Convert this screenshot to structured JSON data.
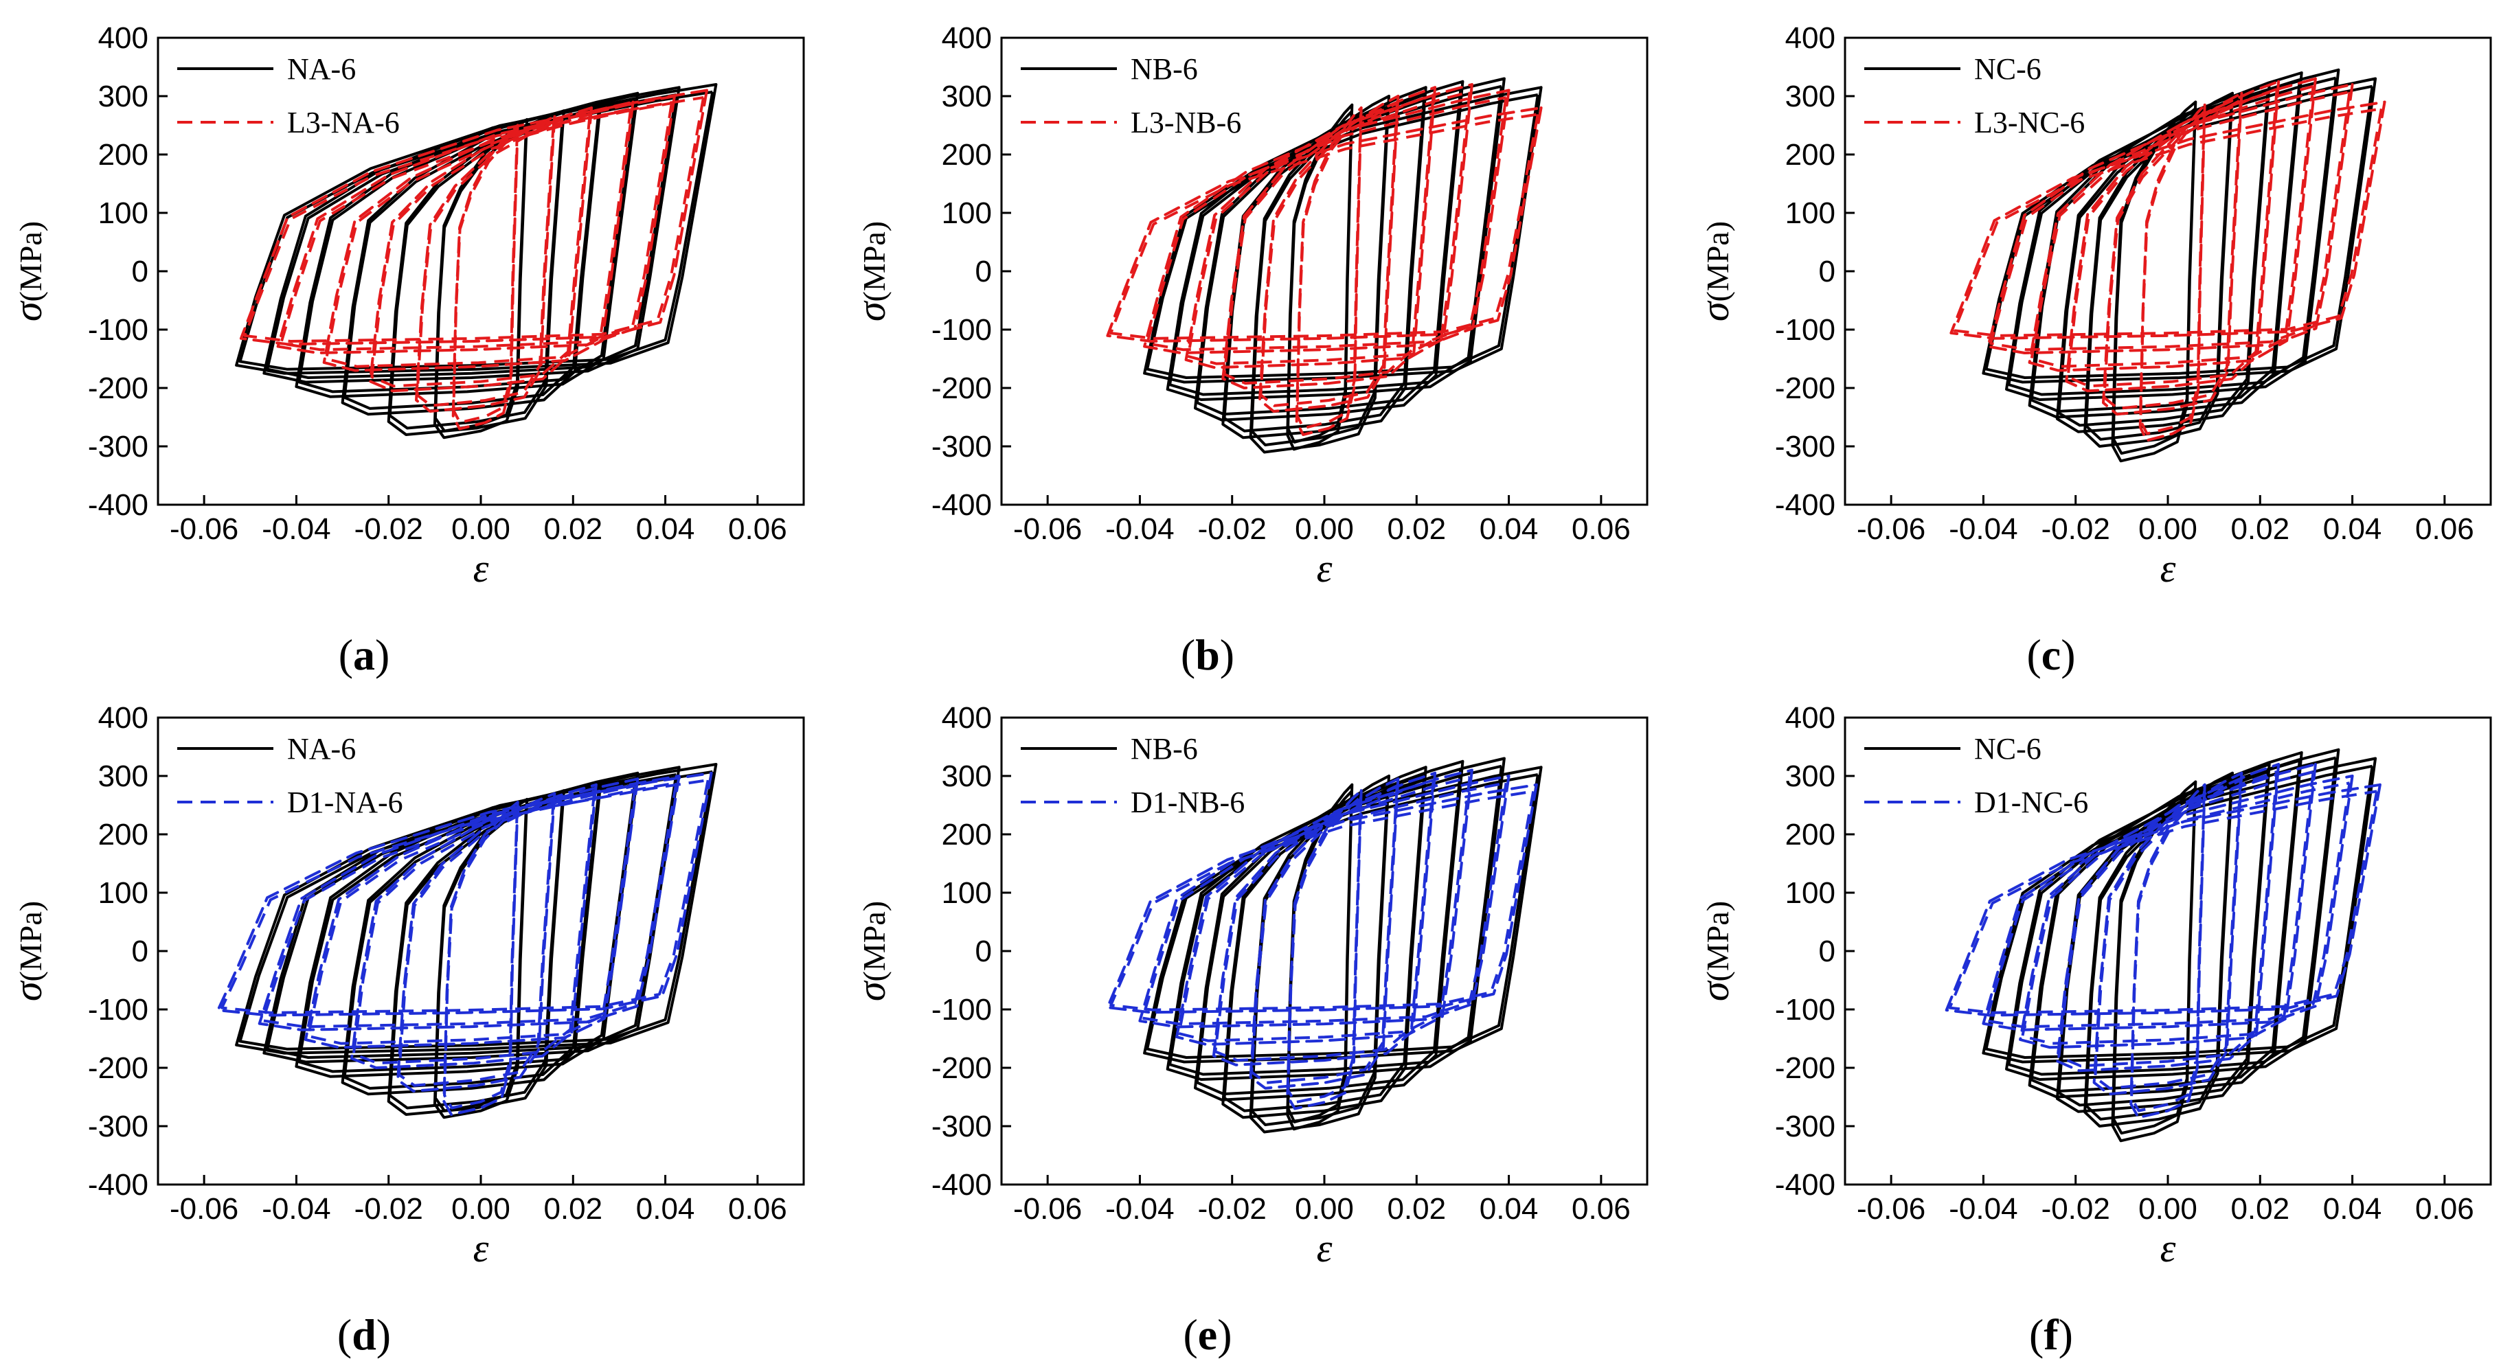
{
  "figure_title": "",
  "chart_data": [
    {
      "type": "line",
      "panel": "a",
      "panel_label": "(a)",
      "xlabel": "ε",
      "ylabel_symbol": "σ",
      "ylabel_unit": "(MPa)",
      "xlim": [
        -0.07,
        0.07
      ],
      "ylim": [
        -400,
        400
      ],
      "xticks": [
        "-0.06",
        "-0.04",
        "-0.02",
        "0.00",
        "0.02",
        "0.04",
        "0.06"
      ],
      "yticks": [
        "400",
        "300",
        "200",
        "100",
        "0",
        "-100",
        "-200",
        "-300",
        "-400"
      ],
      "legend": "top-left",
      "series": [
        {
          "name": "NA-6",
          "style": "solid",
          "color": "#000000",
          "loops": [
            {
              "strain_max": 0.01,
              "strain_min": -0.01,
              "stress_max": 260,
              "stress_min": -285
            },
            {
              "strain_max": 0.018,
              "strain_min": -0.02,
              "stress_max": 275,
              "stress_min": -280
            },
            {
              "strain_max": 0.026,
              "strain_min": -0.03,
              "stress_max": 290,
              "stress_min": -245
            },
            {
              "strain_max": 0.034,
              "strain_min": -0.04,
              "stress_max": 305,
              "stress_min": -215
            },
            {
              "strain_max": 0.043,
              "strain_min": -0.047,
              "stress_max": 315,
              "stress_min": -190
            },
            {
              "strain_max": 0.051,
              "strain_min": -0.053,
              "stress_max": 320,
              "stress_min": -175
            }
          ]
        },
        {
          "name": "L3-NA-6",
          "style": "dashed",
          "color": "#e41a1c",
          "loops": [
            {
              "strain_max": 0.008,
              "strain_min": -0.006,
              "stress_max": 250,
              "stress_min": -270
            },
            {
              "strain_max": 0.016,
              "strain_min": -0.014,
              "stress_max": 265,
              "stress_min": -240
            },
            {
              "strain_max": 0.024,
              "strain_min": -0.024,
              "stress_max": 280,
              "stress_min": -205
            },
            {
              "strain_max": 0.033,
              "strain_min": -0.034,
              "stress_max": 290,
              "stress_min": -170
            },
            {
              "strain_max": 0.042,
              "strain_min": -0.044,
              "stress_max": 300,
              "stress_min": -140
            },
            {
              "strain_max": 0.049,
              "strain_min": -0.052,
              "stress_max": 310,
              "stress_min": -125
            }
          ]
        }
      ]
    },
    {
      "type": "line",
      "panel": "b",
      "panel_label": "(b)",
      "xlabel": "ε",
      "ylabel_symbol": "σ",
      "ylabel_unit": "(MPa)",
      "xlim": [
        -0.07,
        0.07
      ],
      "ylim": [
        -400,
        400
      ],
      "xticks": [
        "-0.06",
        "-0.04",
        "-0.02",
        "0.00",
        "0.02",
        "0.04",
        "0.06"
      ],
      "yticks": [
        "400",
        "300",
        "200",
        "100",
        "0",
        "-100",
        "-200",
        "-300",
        "-400"
      ],
      "legend": "top-left",
      "series": [
        {
          "name": "NB-6",
          "style": "solid",
          "color": "#000000",
          "loops": [
            {
              "strain_max": 0.006,
              "strain_min": -0.008,
              "stress_max": 285,
              "stress_min": -305
            },
            {
              "strain_max": 0.014,
              "strain_min": -0.016,
              "stress_max": 300,
              "stress_min": -310
            },
            {
              "strain_max": 0.022,
              "strain_min": -0.022,
              "stress_max": 315,
              "stress_min": -285
            },
            {
              "strain_max": 0.03,
              "strain_min": -0.028,
              "stress_max": 325,
              "stress_min": -255
            },
            {
              "strain_max": 0.039,
              "strain_min": -0.034,
              "stress_max": 330,
              "stress_min": -220
            },
            {
              "strain_max": 0.047,
              "strain_min": -0.039,
              "stress_max": 315,
              "stress_min": -190
            }
          ]
        },
        {
          "name": "L3-NB-6",
          "style": "dashed",
          "color": "#e41a1c",
          "loops": [
            {
              "strain_max": 0.008,
              "strain_min": -0.006,
              "stress_max": 280,
              "stress_min": -280
            },
            {
              "strain_max": 0.016,
              "strain_min": -0.014,
              "stress_max": 300,
              "stress_min": -240
            },
            {
              "strain_max": 0.024,
              "strain_min": -0.022,
              "stress_max": 315,
              "stress_min": -200
            },
            {
              "strain_max": 0.032,
              "strain_min": -0.03,
              "stress_max": 320,
              "stress_min": -165
            },
            {
              "strain_max": 0.04,
              "strain_min": -0.039,
              "stress_max": 310,
              "stress_min": -140
            },
            {
              "strain_max": 0.047,
              "strain_min": -0.047,
              "stress_max": 280,
              "stress_min": -120
            }
          ]
        }
      ]
    },
    {
      "type": "line",
      "panel": "c",
      "panel_label": "(c)",
      "xlabel": "ε",
      "ylabel_symbol": "σ",
      "ylabel_unit": "(MPa)",
      "xlim": [
        -0.07,
        0.07
      ],
      "ylim": [
        -400,
        400
      ],
      "xticks": [
        "-0.06",
        "-0.04",
        "-0.02",
        "0.00",
        "0.02",
        "0.04",
        "0.06"
      ],
      "yticks": [
        "400",
        "300",
        "200",
        "100",
        "0",
        "-100",
        "-200",
        "-300",
        "-400"
      ],
      "legend": "top-left",
      "series": [
        {
          "name": "NC-6",
          "style": "solid",
          "color": "#000000",
          "loops": [
            {
              "strain_max": 0.006,
              "strain_min": -0.012,
              "stress_max": 290,
              "stress_min": -325
            },
            {
              "strain_max": 0.014,
              "strain_min": -0.018,
              "stress_max": 305,
              "stress_min": -300
            },
            {
              "strain_max": 0.022,
              "strain_min": -0.024,
              "stress_max": 320,
              "stress_min": -275
            },
            {
              "strain_max": 0.029,
              "strain_min": -0.03,
              "stress_max": 340,
              "stress_min": -250
            },
            {
              "strain_max": 0.037,
              "strain_min": -0.035,
              "stress_max": 345,
              "stress_min": -220
            },
            {
              "strain_max": 0.045,
              "strain_min": -0.04,
              "stress_max": 330,
              "stress_min": -190
            }
          ]
        },
        {
          "name": "L3-NC-6",
          "style": "dashed",
          "color": "#e41a1c",
          "loops": [
            {
              "strain_max": 0.008,
              "strain_min": -0.006,
              "stress_max": 285,
              "stress_min": -290
            },
            {
              "strain_max": 0.016,
              "strain_min": -0.014,
              "stress_max": 305,
              "stress_min": -245
            },
            {
              "strain_max": 0.024,
              "strain_min": -0.022,
              "stress_max": 325,
              "stress_min": -205
            },
            {
              "strain_max": 0.032,
              "strain_min": -0.03,
              "stress_max": 330,
              "stress_min": -170
            },
            {
              "strain_max": 0.04,
              "strain_min": -0.039,
              "stress_max": 320,
              "stress_min": -140
            },
            {
              "strain_max": 0.047,
              "strain_min": -0.047,
              "stress_max": 290,
              "stress_min": -115
            }
          ]
        }
      ]
    },
    {
      "type": "line",
      "panel": "d",
      "panel_label": "(d)",
      "xlabel": "ε",
      "ylabel_symbol": "σ",
      "ylabel_unit": "(MPa)",
      "xlim": [
        -0.07,
        0.07
      ],
      "ylim": [
        -400,
        400
      ],
      "xticks": [
        "-0.06",
        "-0.04",
        "-0.02",
        "0.00",
        "0.02",
        "0.04",
        "0.06"
      ],
      "yticks": [
        "400",
        "300",
        "200",
        "100",
        "0",
        "-100",
        "-200",
        "-300",
        "-400"
      ],
      "legend": "top-left",
      "series": [
        {
          "name": "NA-6",
          "style": "solid",
          "color": "#000000",
          "loops": [
            {
              "strain_max": 0.01,
              "strain_min": -0.01,
              "stress_max": 260,
              "stress_min": -285
            },
            {
              "strain_max": 0.018,
              "strain_min": -0.02,
              "stress_max": 275,
              "stress_min": -280
            },
            {
              "strain_max": 0.026,
              "strain_min": -0.03,
              "stress_max": 290,
              "stress_min": -245
            },
            {
              "strain_max": 0.034,
              "strain_min": -0.04,
              "stress_max": 305,
              "stress_min": -215
            },
            {
              "strain_max": 0.043,
              "strain_min": -0.047,
              "stress_max": 315,
              "stress_min": -190
            },
            {
              "strain_max": 0.051,
              "strain_min": -0.053,
              "stress_max": 320,
              "stress_min": -175
            }
          ]
        },
        {
          "name": "D1-NA-6",
          "style": "dashed",
          "color": "#1f2fd6",
          "loops": [
            {
              "strain_max": 0.008,
              "strain_min": -0.008,
              "stress_max": 255,
              "stress_min": -280
            },
            {
              "strain_max": 0.016,
              "strain_min": -0.018,
              "stress_max": 270,
              "stress_min": -240
            },
            {
              "strain_max": 0.025,
              "strain_min": -0.028,
              "stress_max": 285,
              "stress_min": -200
            },
            {
              "strain_max": 0.034,
              "strain_min": -0.038,
              "stress_max": 295,
              "stress_min": -165
            },
            {
              "strain_max": 0.043,
              "strain_min": -0.048,
              "stress_max": 300,
              "stress_min": -135
            },
            {
              "strain_max": 0.05,
              "strain_min": -0.057,
              "stress_max": 305,
              "stress_min": -110
            }
          ]
        }
      ]
    },
    {
      "type": "line",
      "panel": "e",
      "panel_label": "(e)",
      "xlabel": "ε",
      "ylabel_symbol": "σ",
      "ylabel_unit": "(MPa)",
      "xlim": [
        -0.07,
        0.07
      ],
      "ylim": [
        -400,
        400
      ],
      "xticks": [
        "-0.06",
        "-0.04",
        "-0.02",
        "0.00",
        "0.02",
        "0.04",
        "0.06"
      ],
      "yticks": [
        "400",
        "300",
        "200",
        "100",
        "0",
        "-100",
        "-200",
        "-300",
        "-400"
      ],
      "legend": "top-left",
      "series": [
        {
          "name": "NB-6",
          "style": "solid",
          "color": "#000000",
          "loops": [
            {
              "strain_max": 0.006,
              "strain_min": -0.008,
              "stress_max": 285,
              "stress_min": -305
            },
            {
              "strain_max": 0.014,
              "strain_min": -0.016,
              "stress_max": 300,
              "stress_min": -310
            },
            {
              "strain_max": 0.022,
              "strain_min": -0.022,
              "stress_max": 315,
              "stress_min": -285
            },
            {
              "strain_max": 0.03,
              "strain_min": -0.028,
              "stress_max": 325,
              "stress_min": -255
            },
            {
              "strain_max": 0.039,
              "strain_min": -0.034,
              "stress_max": 330,
              "stress_min": -220
            },
            {
              "strain_max": 0.047,
              "strain_min": -0.039,
              "stress_max": 315,
              "stress_min": -190
            }
          ]
        },
        {
          "name": "D1-NB-6",
          "style": "dashed",
          "color": "#1f2fd6",
          "loops": [
            {
              "strain_max": 0.008,
              "strain_min": -0.008,
              "stress_max": 275,
              "stress_min": -270
            },
            {
              "strain_max": 0.016,
              "strain_min": -0.016,
              "stress_max": 295,
              "stress_min": -235
            },
            {
              "strain_max": 0.024,
              "strain_min": -0.024,
              "stress_max": 305,
              "stress_min": -195
            },
            {
              "strain_max": 0.032,
              "strain_min": -0.032,
              "stress_max": 310,
              "stress_min": -160
            },
            {
              "strain_max": 0.04,
              "strain_min": -0.04,
              "stress_max": 300,
              "stress_min": -130
            },
            {
              "strain_max": 0.046,
              "strain_min": -0.047,
              "stress_max": 285,
              "stress_min": -105
            }
          ]
        }
      ]
    },
    {
      "type": "line",
      "panel": "f",
      "panel_label": "(f)",
      "xlabel": "ε",
      "ylabel_symbol": "σ",
      "ylabel_unit": "(MPa)",
      "xlim": [
        -0.07,
        0.07
      ],
      "ylim": [
        -400,
        400
      ],
      "xticks": [
        "-0.06",
        "-0.04",
        "-0.02",
        "0.00",
        "0.02",
        "0.04",
        "0.06"
      ],
      "yticks": [
        "400",
        "300",
        "200",
        "100",
        "0",
        "-100",
        "-200",
        "-300",
        "-400"
      ],
      "legend": "top-left",
      "series": [
        {
          "name": "NC-6",
          "style": "solid",
          "color": "#000000",
          "loops": [
            {
              "strain_max": 0.006,
              "strain_min": -0.012,
              "stress_max": 290,
              "stress_min": -325
            },
            {
              "strain_max": 0.014,
              "strain_min": -0.018,
              "stress_max": 305,
              "stress_min": -300
            },
            {
              "strain_max": 0.022,
              "strain_min": -0.024,
              "stress_max": 320,
              "stress_min": -275
            },
            {
              "strain_max": 0.029,
              "strain_min": -0.03,
              "stress_max": 340,
              "stress_min": -250
            },
            {
              "strain_max": 0.037,
              "strain_min": -0.035,
              "stress_max": 345,
              "stress_min": -220
            },
            {
              "strain_max": 0.045,
              "strain_min": -0.04,
              "stress_max": 330,
              "stress_min": -190
            }
          ]
        },
        {
          "name": "D1-NC-6",
          "style": "dashed",
          "color": "#1f2fd6",
          "loops": [
            {
              "strain_max": 0.008,
              "strain_min": -0.008,
              "stress_max": 285,
              "stress_min": -285
            },
            {
              "strain_max": 0.016,
              "strain_min": -0.016,
              "stress_max": 305,
              "stress_min": -245
            },
            {
              "strain_max": 0.024,
              "strain_min": -0.024,
              "stress_max": 320,
              "stress_min": -205
            },
            {
              "strain_max": 0.032,
              "strain_min": -0.032,
              "stress_max": 320,
              "stress_min": -165
            },
            {
              "strain_max": 0.04,
              "strain_min": -0.04,
              "stress_max": 300,
              "stress_min": -135
            },
            {
              "strain_max": 0.046,
              "strain_min": -0.048,
              "stress_max": 285,
              "stress_min": -110
            }
          ]
        }
      ]
    }
  ]
}
